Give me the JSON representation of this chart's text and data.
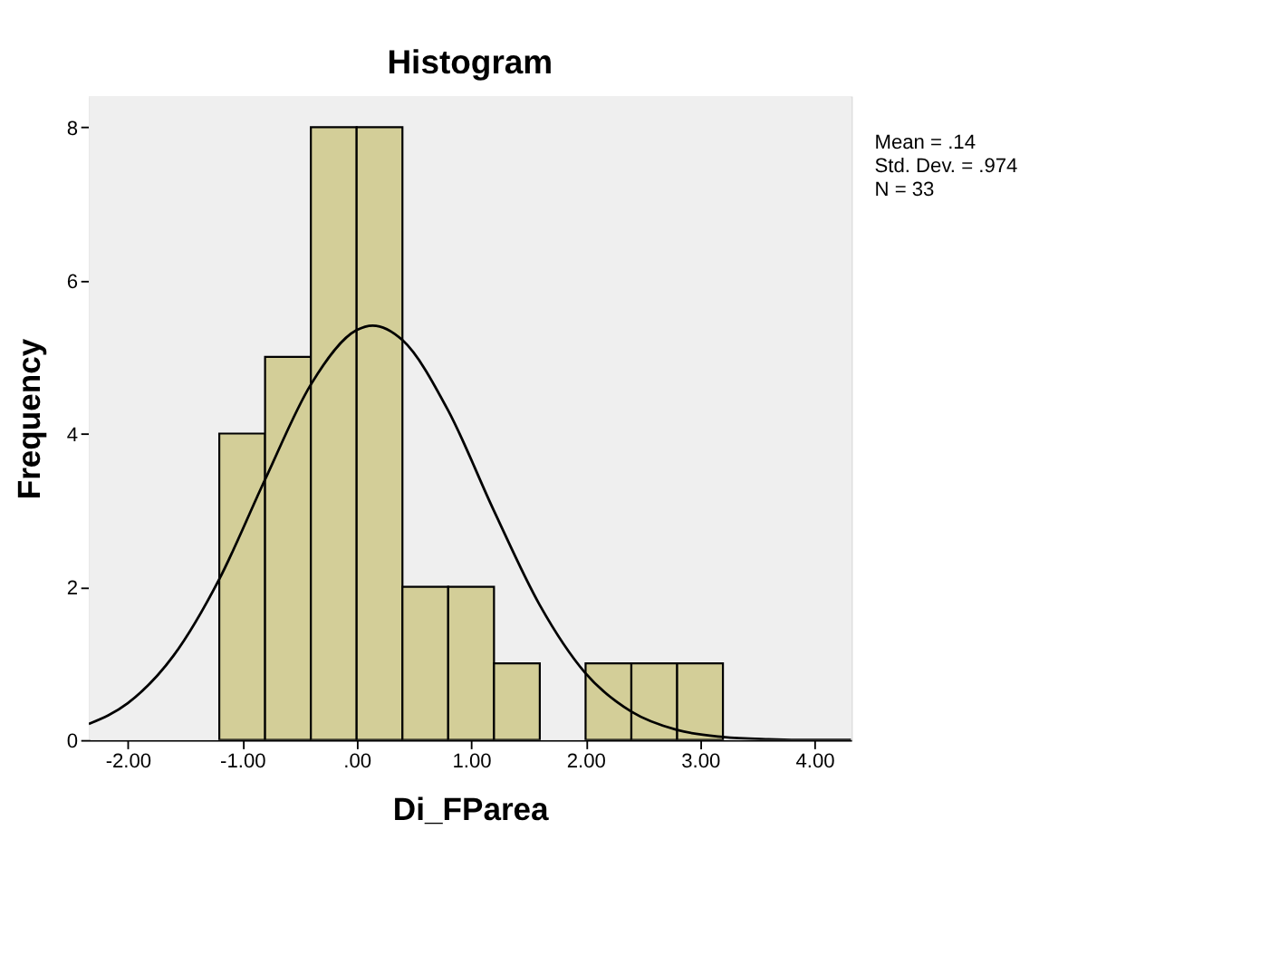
{
  "chart_data": {
    "type": "histogram",
    "title": "Histogram",
    "xlabel": "Di_FParea",
    "ylabel": "Frequency",
    "bins": [
      -1.2,
      -0.8,
      -0.4,
      0,
      0.4,
      0.8,
      1.2,
      1.6,
      2.0,
      2.4,
      2.8,
      3.2
    ],
    "values": [
      4,
      5,
      8,
      8,
      2,
      2,
      1,
      0,
      1,
      1,
      1
    ],
    "color": "#d3ce98",
    "series": [
      {
        "type": "line",
        "color": "#000000",
        "x": [
          -2.34,
          -2.0,
          -1.6,
          -1.2,
          -0.8,
          -0.4,
          0,
          0.14,
          0.4,
          0.8,
          1.2,
          1.6,
          2.0,
          2.4,
          2.8,
          3.2,
          3.6,
          4.0,
          4.32
        ],
        "values": [
          0.21,
          0.48,
          1.1,
          2.1,
          3.4,
          4.64,
          5.35,
          5.41,
          5.22,
          4.3,
          2.99,
          1.76,
          0.87,
          0.37,
          0.13,
          0.04,
          0.01,
          0,
          0
        ]
      }
    ],
    "xlim": [
      -2.34,
      4.32
    ],
    "ylim": [
      0,
      8.4
    ],
    "xticks": [
      {
        "value": -2,
        "label": "-2.00"
      },
      {
        "value": -1,
        "label": "-1.00"
      },
      {
        "value": 0,
        "label": ".00"
      },
      {
        "value": 1,
        "label": "1.00"
      },
      {
        "value": 2,
        "label": "2.00"
      },
      {
        "value": 3,
        "label": "3.00"
      },
      {
        "value": 4,
        "label": "4.00"
      }
    ],
    "yticks": [
      0,
      2,
      4,
      6,
      8
    ],
    "grid": false,
    "annotations": [
      "Mean = .14",
      "Std. Dev. = .974",
      "N = 33"
    ]
  }
}
